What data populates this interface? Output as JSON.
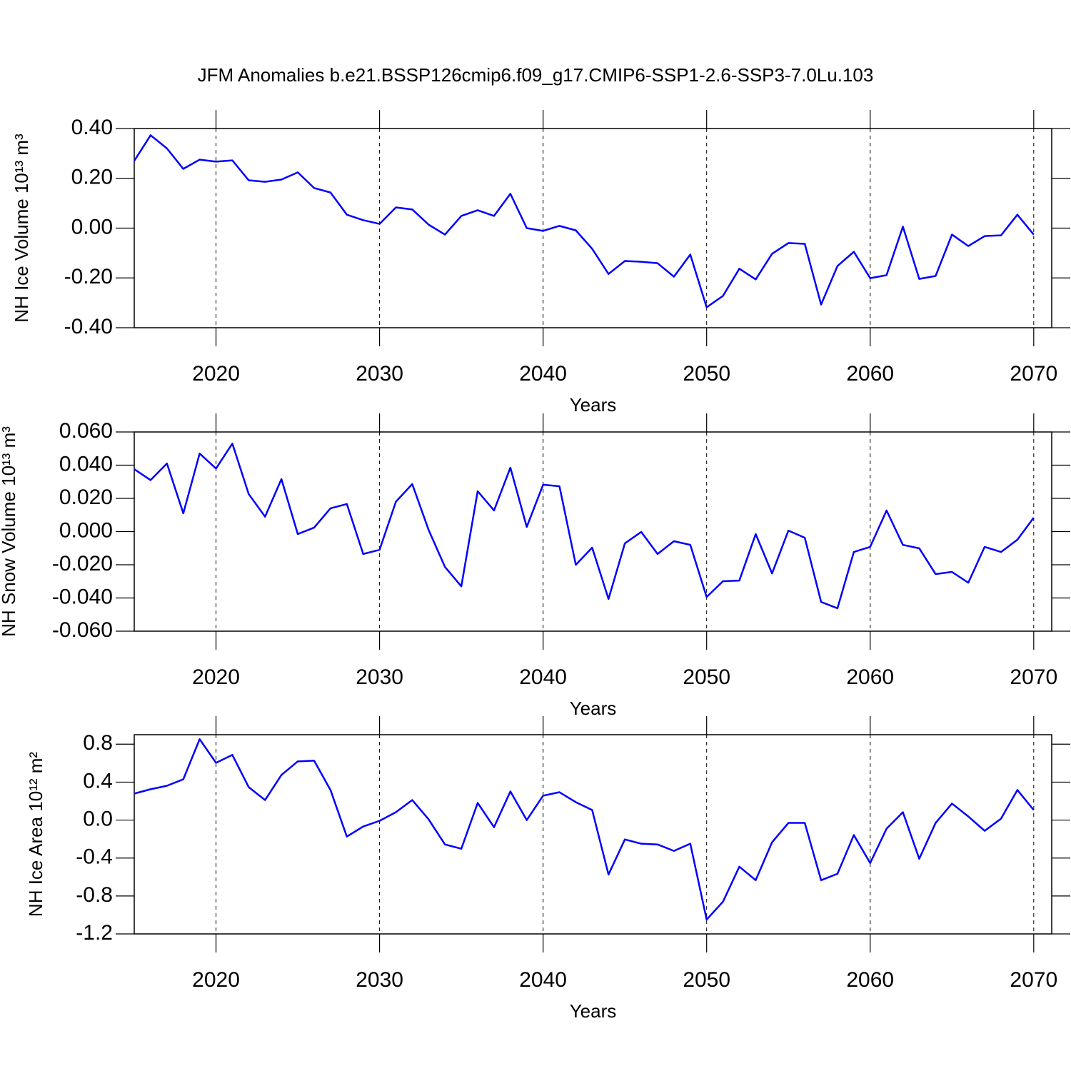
{
  "chart_data": [
    {
      "type": "line",
      "title": "JFM Anomalies b.e21.BSSP126cmip6.f09_g17.CMIP6-SSP1-2.6-SSP3-7.0Lu.103",
      "ylabel": "NH Ice Volume 10¹³ m³",
      "xlabel": "Years",
      "x": [
        2015,
        2016,
        2017,
        2018,
        2019,
        2020,
        2021,
        2022,
        2023,
        2024,
        2025,
        2026,
        2027,
        2028,
        2029,
        2030,
        2031,
        2032,
        2033,
        2034,
        2035,
        2036,
        2037,
        2038,
        2039,
        2040,
        2041,
        2042,
        2043,
        2044,
        2045,
        2046,
        2047,
        2048,
        2049,
        2050,
        2051,
        2052,
        2053,
        2054,
        2055,
        2056,
        2057,
        2058,
        2059,
        2060,
        2061,
        2062,
        2063,
        2064,
        2065,
        2066,
        2067,
        2068,
        2069,
        2070
      ],
      "series": [
        {
          "color": "#0000ff",
          "values": [
            0.27,
            0.373,
            0.32,
            0.238,
            0.275,
            0.267,
            0.272,
            0.192,
            0.186,
            0.195,
            0.224,
            0.161,
            0.143,
            0.054,
            0.032,
            0.017,
            0.083,
            0.075,
            0.014,
            -0.026,
            0.049,
            0.072,
            0.049,
            0.138,
            0.0,
            -0.011,
            0.009,
            -0.009,
            -0.083,
            -0.184,
            -0.132,
            -0.135,
            -0.141,
            -0.195,
            -0.106,
            -0.318,
            -0.272,
            -0.163,
            -0.206,
            -0.103,
            -0.06,
            -0.063,
            -0.307,
            -0.152,
            -0.095,
            -0.201,
            -0.189,
            0.006,
            -0.204,
            -0.192,
            -0.026,
            -0.072,
            -0.032,
            -0.029,
            0.054,
            -0.026
          ]
        }
      ],
      "xlim": [
        2015,
        2071.1
      ],
      "xticks": [
        2020,
        2030,
        2040,
        2050,
        2060,
        2070
      ],
      "ylim": [
        -0.4,
        0.4
      ],
      "yticks": [
        {
          "value": -0.4,
          "label": "-0.40"
        },
        {
          "value": -0.2,
          "label": "-0.20"
        },
        {
          "value": 0,
          "label": "0.00"
        },
        {
          "value": 0.2,
          "label": "0.20"
        },
        {
          "value": 0.4,
          "label": "0.40"
        }
      ],
      "xgrid": true
    },
    {
      "type": "line",
      "ylabel": "NH Snow Volume 10¹³ m³",
      "xlabel": "Years",
      "x": [
        2015,
        2016,
        2017,
        2018,
        2019,
        2020,
        2021,
        2022,
        2023,
        2024,
        2025,
        2026,
        2027,
        2028,
        2029,
        2030,
        2031,
        2032,
        2033,
        2034,
        2035,
        2036,
        2037,
        2038,
        2039,
        2040,
        2041,
        2042,
        2043,
        2044,
        2045,
        2046,
        2047,
        2048,
        2049,
        2050,
        2051,
        2052,
        2053,
        2054,
        2055,
        2056,
        2057,
        2058,
        2059,
        2060,
        2061,
        2062,
        2063,
        2064,
        2065,
        2066,
        2067,
        2068,
        2069,
        2070
      ],
      "series": [
        {
          "color": "#0000ff",
          "values": [
            0.0376,
            0.031,
            0.041,
            0.011,
            0.047,
            0.038,
            0.053,
            0.0226,
            0.009,
            0.0316,
            -0.0015,
            0.0024,
            0.014,
            0.0166,
            -0.0135,
            -0.011,
            0.018,
            0.0286,
            0.001,
            -0.0213,
            -0.033,
            0.0243,
            0.0127,
            0.0385,
            0.0028,
            0.0282,
            0.0273,
            -0.02,
            -0.0097,
            -0.0406,
            -0.0071,
            -0.0002,
            -0.0135,
            -0.0058,
            -0.008,
            -0.0394,
            -0.0299,
            -0.0295,
            -0.0015,
            -0.0252,
            0.0006,
            -0.0037,
            -0.0424,
            -0.0462,
            -0.0123,
            -0.0092,
            0.0127,
            -0.008,
            -0.0101,
            -0.0256,
            -0.0243,
            -0.0308,
            -0.0092,
            -0.0123,
            -0.0049,
            0.0084
          ]
        }
      ],
      "xlim": [
        2015,
        2071.1
      ],
      "xticks": [
        2020,
        2030,
        2040,
        2050,
        2060,
        2070
      ],
      "ylim": [
        -0.06,
        0.06
      ],
      "yticks": [
        {
          "value": -0.06,
          "label": "-0.060"
        },
        {
          "value": -0.04,
          "label": "-0.040"
        },
        {
          "value": -0.02,
          "label": "-0.020"
        },
        {
          "value": 0,
          "label": "0.000"
        },
        {
          "value": 0.02,
          "label": "0.020"
        },
        {
          "value": 0.04,
          "label": "0.040"
        },
        {
          "value": 0.06,
          "label": "0.060"
        }
      ],
      "xgrid": true
    },
    {
      "type": "line",
      "ylabel": "NH Ice Area 10¹² m²",
      "xlabel": "Years",
      "x": [
        2015,
        2016,
        2017,
        2018,
        2019,
        2020,
        2021,
        2022,
        2023,
        2024,
        2025,
        2026,
        2027,
        2028,
        2029,
        2030,
        2031,
        2032,
        2033,
        2034,
        2035,
        2036,
        2037,
        2038,
        2039,
        2040,
        2041,
        2042,
        2043,
        2044,
        2045,
        2046,
        2047,
        2048,
        2049,
        2050,
        2051,
        2052,
        2053,
        2054,
        2055,
        2056,
        2057,
        2058,
        2059,
        2060,
        2061,
        2062,
        2063,
        2064,
        2065,
        2066,
        2067,
        2068,
        2069,
        2070
      ],
      "series": [
        {
          "color": "#0000ff",
          "values": [
            0.279,
            0.325,
            0.362,
            0.43,
            0.853,
            0.604,
            0.687,
            0.347,
            0.211,
            0.475,
            0.619,
            0.626,
            0.317,
            -0.174,
            -0.068,
            -0.008,
            0.083,
            0.211,
            0.008,
            -0.257,
            -0.302,
            0.181,
            -0.075,
            0.302,
            0.0,
            0.257,
            0.294,
            0.189,
            0.106,
            -0.574,
            -0.204,
            -0.249,
            -0.257,
            -0.325,
            -0.249,
            -1.049,
            -0.86,
            -0.491,
            -0.634,
            -0.234,
            -0.03,
            -0.03,
            -0.634,
            -0.566,
            -0.158,
            -0.453,
            -0.091,
            0.083,
            -0.408,
            -0.03,
            0.174,
            0.038,
            -0.113,
            0.015,
            0.317,
            0.106
          ]
        }
      ],
      "xlim": [
        2015,
        2071.1
      ],
      "xticks": [
        2020,
        2030,
        2040,
        2050,
        2060,
        2070
      ],
      "ylim": [
        -1.2,
        0.9
      ],
      "yticks": [
        -1.2,
        -0.8,
        -0.4,
        {
          "value": 0,
          "label": "0.0"
        },
        0.4,
        0.8
      ],
      "xgrid": true
    }
  ]
}
